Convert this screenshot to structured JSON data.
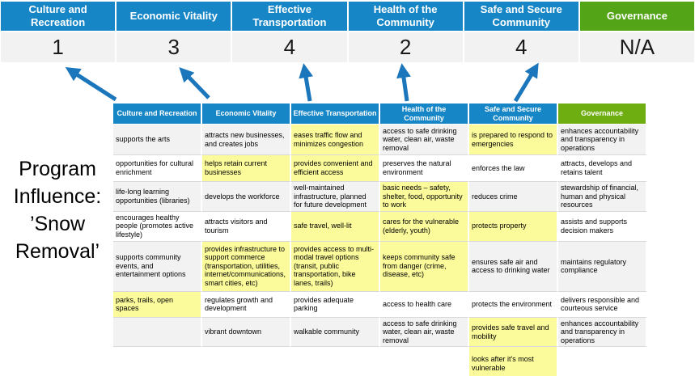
{
  "colors": {
    "header_blue": "#1786c6",
    "governance_green_top": "#54a417",
    "governance_green_table": "#6fae10",
    "highlight_yellow": "#fbfb9b",
    "score_row_gray": "#f2f2f2",
    "arrow_blue": "#1b76bc"
  },
  "program_label": {
    "text": "Program\nInfluence:\n’Snow\nRemoval’"
  },
  "summary": {
    "categories": [
      {
        "label": "Culture and\nRecreation",
        "score": "1"
      },
      {
        "label": "Economic Vitality",
        "score": "3"
      },
      {
        "label": "Effective\nTransportation",
        "score": "4"
      },
      {
        "label": "Health of the\nCommunity",
        "score": "2"
      },
      {
        "label": "Safe and Secure\nCommunity",
        "score": "4"
      },
      {
        "label": "Governance",
        "score": "N/A"
      }
    ]
  },
  "matrix": {
    "columns": [
      {
        "header": "Culture and Recreation",
        "cells": [
          {
            "text": "supports the arts",
            "highlight": false
          },
          {
            "text": "opportunities for cultural enrichment",
            "highlight": false
          },
          {
            "text": "life-long learning opportunities (libraries)",
            "highlight": false
          },
          {
            "text": "encourages healthy people (promotes active lifestyle)",
            "highlight": false
          },
          {
            "text": "supports community events, and entertainment options",
            "highlight": false
          },
          {
            "text": "parks, trails, open spaces",
            "highlight": true
          },
          {
            "text": "",
            "highlight": false
          },
          {
            "text": "",
            "highlight": false
          }
        ]
      },
      {
        "header": "Economic Vitality",
        "cells": [
          {
            "text": "attracts new businesses, and creates jobs",
            "highlight": false
          },
          {
            "text": "helps retain current businesses",
            "highlight": true
          },
          {
            "text": "develops the workforce",
            "highlight": false
          },
          {
            "text": "attracts visitors and tourism",
            "highlight": false
          },
          {
            "text": "provides infrastructure to support commerce (transportation, utilities, internet/communications, smart cities, etc)",
            "highlight": true
          },
          {
            "text": "regulates growth and development",
            "highlight": false
          },
          {
            "text": "vibrant downtown",
            "highlight": false
          },
          {
            "text": "",
            "highlight": false
          }
        ]
      },
      {
        "header": "Effective Transportation",
        "cells": [
          {
            "text": "eases traffic flow and minimizes congestion",
            "highlight": true
          },
          {
            "text": "provides convenient and efficient access",
            "highlight": true
          },
          {
            "text": "well-maintained infrastructure, planned for future development",
            "highlight": false
          },
          {
            "text": "safe travel, well-lit",
            "highlight": true
          },
          {
            "text": "provides access to multi-modal travel options (transit, public transportation, bike lanes, trails)",
            "highlight": true
          },
          {
            "text": "provides adequate parking",
            "highlight": false
          },
          {
            "text": "walkable community",
            "highlight": false
          },
          {
            "text": "",
            "highlight": false
          }
        ]
      },
      {
        "header": "Health of the Community",
        "cells": [
          {
            "text": "access to safe drinking water, clean air, waste removal",
            "highlight": false
          },
          {
            "text": "preserves the natural environment",
            "highlight": false
          },
          {
            "text": "basic needs – safety, shelter, food, opportunity to work",
            "highlight": true
          },
          {
            "text": "cares for the vulnerable (elderly, youth)",
            "highlight": true
          },
          {
            "text": "keeps community safe from danger (crime, disease, etc)",
            "highlight": true
          },
          {
            "text": "access to health care",
            "highlight": false
          },
          {
            "text": "access to safe drinking water, clean air, waste removal",
            "highlight": false
          },
          {
            "text": "",
            "highlight": false
          }
        ]
      },
      {
        "header": "Safe and Secure Community",
        "cells": [
          {
            "text": "is prepared to respond to emergencies",
            "highlight": true
          },
          {
            "text": "enforces the law",
            "highlight": false
          },
          {
            "text": "reduces crime",
            "highlight": false
          },
          {
            "text": "protects property",
            "highlight": true
          },
          {
            "text": "ensures safe air and access to drinking water",
            "highlight": false
          },
          {
            "text": "protects the environment",
            "highlight": false
          },
          {
            "text": "provides safe travel and mobility",
            "highlight": true
          },
          {
            "text": "looks after it's most vulnerable",
            "highlight": true
          }
        ]
      },
      {
        "header": "Governance",
        "cells": [
          {
            "text": "enhances accountability and transparency in operations",
            "highlight": false
          },
          {
            "text": "attracts, develops and retains talent",
            "highlight": false
          },
          {
            "text": "stewardship of financial, human and physical resources",
            "highlight": false
          },
          {
            "text": "assists and supports decision makers",
            "highlight": false
          },
          {
            "text": "maintains regulatory compliance",
            "highlight": false
          },
          {
            "text": "delivers responsible and courteous service",
            "highlight": false
          },
          {
            "text": "enhances accountability and transparency in operations",
            "highlight": false
          },
          {
            "text": "",
            "highlight": false
          }
        ]
      }
    ]
  }
}
